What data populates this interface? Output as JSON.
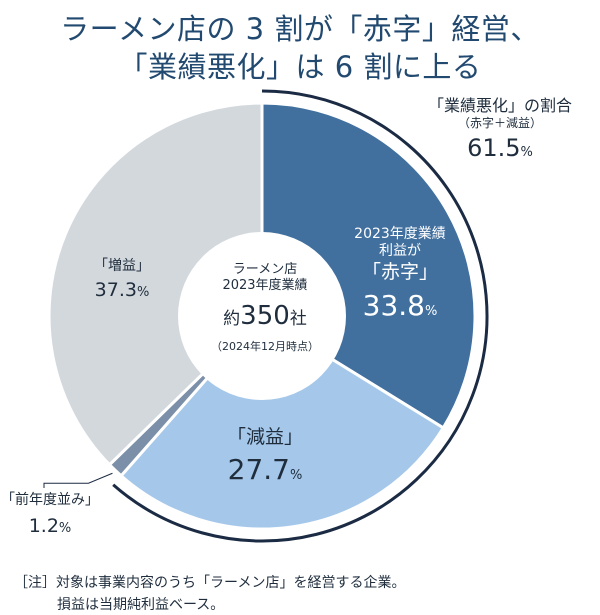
{
  "title_line1": "ラーメン店の 3 割が「赤字」経営、",
  "title_line2": "「業績悪化」は 6 割に上る",
  "chart_data": {
    "type": "pie",
    "center": {
      "line1": "ラーメン店",
      "line2": "2023年度業績",
      "count_prefix": "約",
      "count": "350",
      "count_suffix": "社",
      "date": "（2024年12月時点）"
    },
    "slices": [
      {
        "label_line1": "2023年度業績",
        "label_line2": "利益が",
        "label": "「赤字」",
        "value": 33.8,
        "display": "33.8",
        "color": "#41709f"
      },
      {
        "label": "「減益」",
        "value": 27.7,
        "display": "27.7",
        "color": "#a5c8ea"
      },
      {
        "label": "「前年度並み」",
        "value": 1.2,
        "display": "1.2",
        "color": "#7b8fa8"
      },
      {
        "label": "「増益」",
        "value": 37.3,
        "display": "37.3",
        "color": "#d3d8dd"
      }
    ],
    "unit": "%",
    "bracket_annotation": {
      "label": "「業績悪化」の割合",
      "sublabel": "（赤字＋減益）",
      "value": "61.5"
    }
  },
  "footnote": {
    "prefix": "［注］",
    "line1": "対象は事業内容のうち「ラーメン店」を経営する企業。",
    "line2": "損益は当期純利益ベース。"
  }
}
